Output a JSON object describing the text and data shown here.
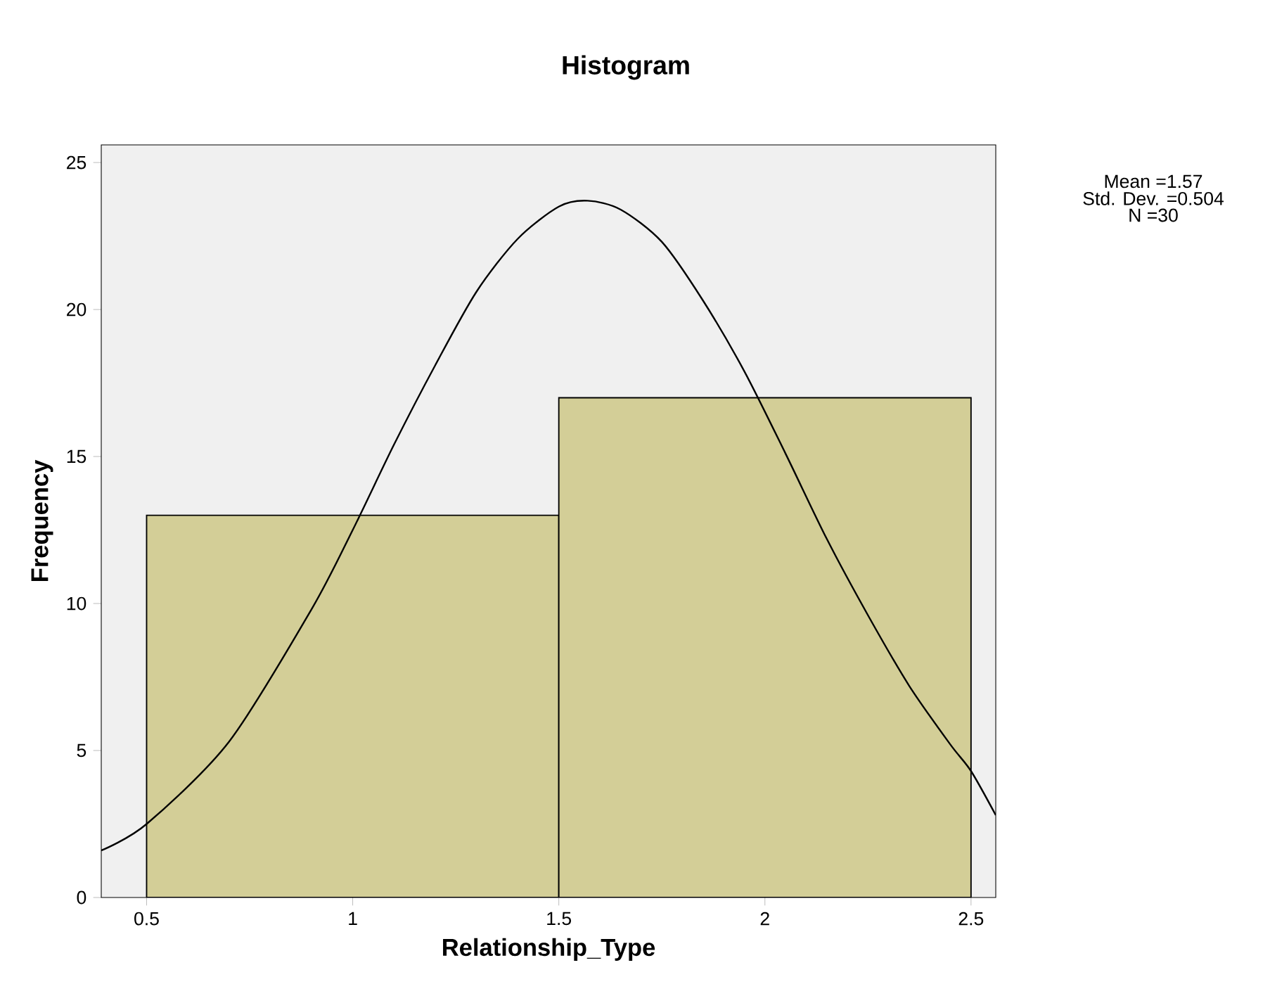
{
  "chart_data": {
    "type": "histogram",
    "title": "Histogram",
    "xlabel": "Relationship_Type",
    "ylabel": "Frequency",
    "bins": [
      0.5,
      1.5,
      2.5
    ],
    "values": [
      13,
      17
    ],
    "color": "#d3ce97",
    "series": [
      {
        "type": "line",
        "color": "#000000",
        "x": [
          0.39,
          0.5,
          0.7,
          0.9,
          1.0,
          1.1,
          1.2,
          1.3,
          1.4,
          1.5,
          1.57,
          1.65,
          1.75,
          1.85,
          1.95,
          2.05,
          2.15,
          2.25,
          2.35,
          2.45,
          2.5,
          2.56
        ],
        "values": [
          1.6,
          2.5,
          5.3,
          9.8,
          12.5,
          15.4,
          18.1,
          20.6,
          22.4,
          23.5,
          23.7,
          23.4,
          22.3,
          20.3,
          17.9,
          15.1,
          12.2,
          9.6,
          7.2,
          5.2,
          4.3,
          2.8
        ]
      }
    ],
    "xlim": [
      0.39,
      2.56
    ],
    "ylim": [
      0,
      25.6
    ],
    "xticks": [
      0.5,
      1,
      1.5,
      2,
      2.5
    ],
    "yticks": [
      0,
      5,
      10,
      15,
      20,
      25
    ],
    "grid": false,
    "annotations": [
      "Mean =1.57",
      "Std. Dev. =0.504",
      "N =30"
    ]
  }
}
